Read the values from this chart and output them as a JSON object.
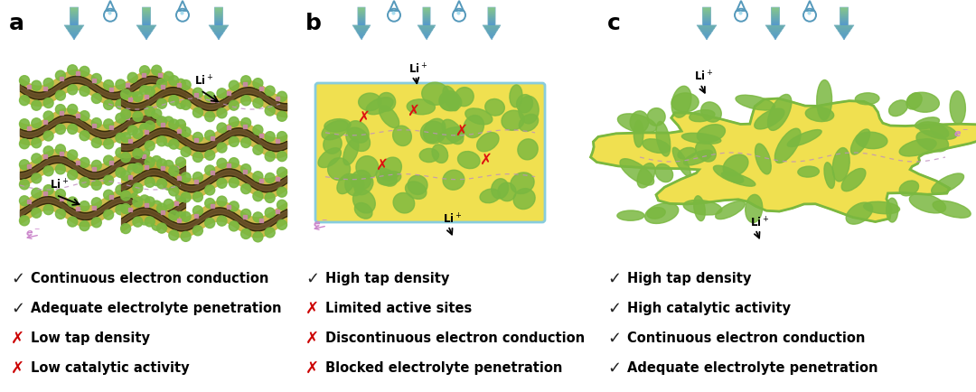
{
  "panels": [
    "a",
    "b",
    "c"
  ],
  "panel_a_items": [
    {
      "symbol": "✓",
      "color": "#222222",
      "text": "Continuous electron conduction"
    },
    {
      "symbol": "✓",
      "color": "#222222",
      "text": "Adequate electrolyte penetration"
    },
    {
      "symbol": "✗",
      "color": "#cc0000",
      "text": "Low tap density"
    },
    {
      "symbol": "✗",
      "color": "#cc0000",
      "text": "Low catalytic activity"
    }
  ],
  "panel_b_items": [
    {
      "symbol": "✓",
      "color": "#222222",
      "text": "High tap density"
    },
    {
      "symbol": "✗",
      "color": "#cc0000",
      "text": "Limited active sites"
    },
    {
      "symbol": "✗",
      "color": "#cc0000",
      "text": "Discontinuous electron conduction"
    },
    {
      "symbol": "✗",
      "color": "#cc0000",
      "text": "Blocked electrolyte penetration"
    }
  ],
  "panel_c_items": [
    {
      "symbol": "✓",
      "color": "#222222",
      "text": "High tap density"
    },
    {
      "symbol": "✓",
      "color": "#222222",
      "text": "High catalytic activity"
    },
    {
      "symbol": "✓",
      "color": "#222222",
      "text": "Continuous electron conduction"
    },
    {
      "symbol": "✓",
      "color": "#222222",
      "text": "Adequate electrolyte penetration"
    }
  ],
  "background_color": "#ffffff",
  "dark_core_color": "#3a3010",
  "yellow_side_color": "#c8b840",
  "green_bump_color": "#7ab840",
  "yellow_fill_b": "#f0e050",
  "green_blob_color": "#7ab840",
  "red_x_color": "#dd1111",
  "dashed_line_color": "#c090c0",
  "li_text_color": "#111111",
  "e_text_color": "#cc88cc",
  "panel_label_fontsize": 18,
  "item_fontsize": 10.5,
  "symbol_fontsize": 13
}
